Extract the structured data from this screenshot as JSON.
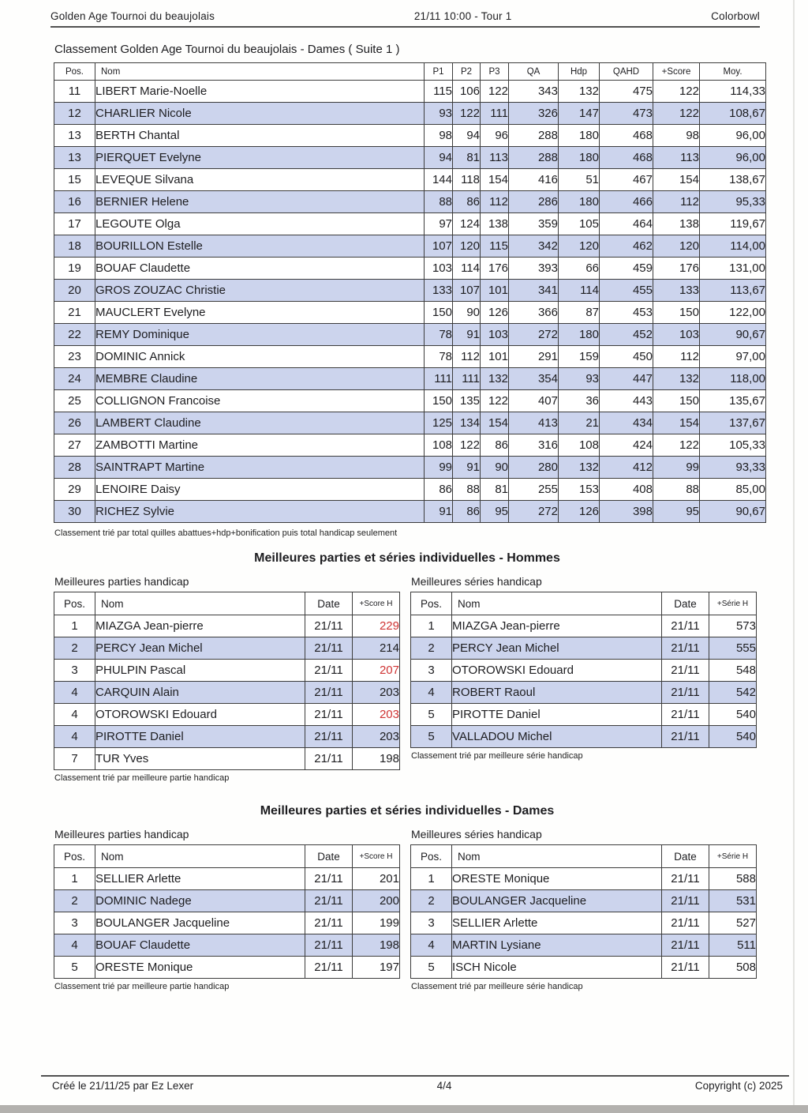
{
  "page_header": {
    "left": "Golden Age Tournoi du beaujolais",
    "center": "21/11 10:00 - Tour 1",
    "right": "Colorbowl"
  },
  "main_table": {
    "title": "Classement Golden Age Tournoi du beaujolais - Dames ( Suite 1 )",
    "columns": [
      "Pos.",
      "Nom",
      "P1",
      "P2",
      "P3",
      "QA",
      "Hdp",
      "QAHD",
      "+Score",
      "Moy."
    ],
    "rows": [
      [
        "11",
        "LIBERT Marie-Noelle",
        "115",
        "106",
        "122",
        "343",
        "132",
        "475",
        "122",
        "114,33"
      ],
      [
        "12",
        "CHARLIER Nicole",
        "93",
        "122",
        "111",
        "326",
        "147",
        "473",
        "122",
        "108,67"
      ],
      [
        "13",
        "BERTH Chantal",
        "98",
        "94",
        "96",
        "288",
        "180",
        "468",
        "98",
        "96,00"
      ],
      [
        "13",
        "PIERQUET Evelyne",
        "94",
        "81",
        "113",
        "288",
        "180",
        "468",
        "113",
        "96,00"
      ],
      [
        "15",
        "LEVEQUE Silvana",
        "144",
        "118",
        "154",
        "416",
        "51",
        "467",
        "154",
        "138,67"
      ],
      [
        "16",
        "BERNIER Helene",
        "88",
        "86",
        "112",
        "286",
        "180",
        "466",
        "112",
        "95,33"
      ],
      [
        "17",
        "LEGOUTE Olga",
        "97",
        "124",
        "138",
        "359",
        "105",
        "464",
        "138",
        "119,67"
      ],
      [
        "18",
        "BOURILLON Estelle",
        "107",
        "120",
        "115",
        "342",
        "120",
        "462",
        "120",
        "114,00"
      ],
      [
        "19",
        "BOUAF Claudette",
        "103",
        "114",
        "176",
        "393",
        "66",
        "459",
        "176",
        "131,00"
      ],
      [
        "20",
        "GROS ZOUZAC Christie",
        "133",
        "107",
        "101",
        "341",
        "114",
        "455",
        "133",
        "113,67"
      ],
      [
        "21",
        "MAUCLERT Evelyne",
        "150",
        "90",
        "126",
        "366",
        "87",
        "453",
        "150",
        "122,00"
      ],
      [
        "22",
        "REMY Dominique",
        "78",
        "91",
        "103",
        "272",
        "180",
        "452",
        "103",
        "90,67"
      ],
      [
        "23",
        "DOMINIC Annick",
        "78",
        "112",
        "101",
        "291",
        "159",
        "450",
        "112",
        "97,00"
      ],
      [
        "24",
        "MEMBRE Claudine",
        "111",
        "111",
        "132",
        "354",
        "93",
        "447",
        "132",
        "118,00"
      ],
      [
        "25",
        "COLLIGNON Francoise",
        "150",
        "135",
        "122",
        "407",
        "36",
        "443",
        "150",
        "135,67"
      ],
      [
        "26",
        "LAMBERT Claudine",
        "125",
        "134",
        "154",
        "413",
        "21",
        "434",
        "154",
        "137,67"
      ],
      [
        "27",
        "ZAMBOTTI Martine",
        "108",
        "122",
        "86",
        "316",
        "108",
        "424",
        "122",
        "105,33"
      ],
      [
        "28",
        "SAINTRAPT Martine",
        "99",
        "91",
        "90",
        "280",
        "132",
        "412",
        "99",
        "93,33"
      ],
      [
        "29",
        "LENOIRE Daisy",
        "86",
        "88",
        "81",
        "255",
        "153",
        "408",
        "88",
        "85,00"
      ],
      [
        "30",
        "RICHEZ Sylvie",
        "91",
        "86",
        "95",
        "272",
        "126",
        "398",
        "95",
        "90,67"
      ]
    ],
    "footnote": "Classement trié par total quilles abattues+hdp+bonification puis total handicap seulement"
  },
  "hommes": {
    "title": "Meilleures parties et séries individuelles - Hommes",
    "parties": {
      "subtitle": "Meilleures parties handicap",
      "columns": [
        "Pos.",
        "Nom",
        "Date",
        "+Score H"
      ],
      "rows": [
        {
          "cells": [
            "1",
            "MIAZGA Jean-pierre",
            "21/11",
            "229"
          ],
          "red": true
        },
        {
          "cells": [
            "2",
            "PERCY Jean Michel",
            "21/11",
            "214"
          ],
          "red": false
        },
        {
          "cells": [
            "3",
            "PHULPIN Pascal",
            "21/11",
            "207"
          ],
          "red": true
        },
        {
          "cells": [
            "4",
            "CARQUIN Alain",
            "21/11",
            "203"
          ],
          "red": false
        },
        {
          "cells": [
            "4",
            "OTOROWSKI Edouard",
            "21/11",
            "203"
          ],
          "red": true
        },
        {
          "cells": [
            "4",
            "PIROTTE Daniel",
            "21/11",
            "203"
          ],
          "red": false
        },
        {
          "cells": [
            "7",
            "TUR Yves",
            "21/11",
            "198"
          ],
          "red": false
        }
      ],
      "footnote": "Classement trié par meilleure partie handicap"
    },
    "series": {
      "subtitle": "Meilleures séries handicap",
      "columns": [
        "Pos.",
        "Nom",
        "Date",
        "+Série H"
      ],
      "rows": [
        [
          "1",
          "MIAZGA Jean-pierre",
          "21/11",
          "573"
        ],
        [
          "2",
          "PERCY Jean Michel",
          "21/11",
          "555"
        ],
        [
          "3",
          "OTOROWSKI Edouard",
          "21/11",
          "548"
        ],
        [
          "4",
          "ROBERT Raoul",
          "21/11",
          "542"
        ],
        [
          "5",
          "PIROTTE Daniel",
          "21/11",
          "540"
        ],
        [
          "5",
          "VALLADOU Michel",
          "21/11",
          "540"
        ]
      ],
      "footnote": "Classement trié par meilleure série handicap"
    }
  },
  "dames": {
    "title": "Meilleures parties et séries individuelles - Dames",
    "parties": {
      "subtitle": "Meilleures parties handicap",
      "columns": [
        "Pos.",
        "Nom",
        "Date",
        "+Score H"
      ],
      "rows": [
        [
          "1",
          "SELLIER Arlette",
          "21/11",
          "201"
        ],
        [
          "2",
          "DOMINIC Nadege",
          "21/11",
          "200"
        ],
        [
          "3",
          "BOULANGER Jacqueline",
          "21/11",
          "199"
        ],
        [
          "4",
          "BOUAF Claudette",
          "21/11",
          "198"
        ],
        [
          "5",
          "ORESTE Monique",
          "21/11",
          "197"
        ]
      ],
      "footnote": "Classement trié par meilleure partie handicap"
    },
    "series": {
      "subtitle": "Meilleures séries handicap",
      "columns": [
        "Pos.",
        "Nom",
        "Date",
        "+Série H"
      ],
      "rows": [
        [
          "1",
          "ORESTE Monique",
          "21/11",
          "588"
        ],
        [
          "2",
          "BOULANGER Jacqueline",
          "21/11",
          "531"
        ],
        [
          "3",
          "SELLIER Arlette",
          "21/11",
          "527"
        ],
        [
          "4",
          "MARTIN Lysiane",
          "21/11",
          "511"
        ],
        [
          "5",
          "ISCH Nicole",
          "21/11",
          "508"
        ]
      ],
      "footnote": "Classement trié par meilleure série handicap"
    }
  },
  "page_footer": {
    "left": "Créé le 21/11/25 par Ez Lexer",
    "center": "4/4",
    "right": "Copyright (c) 2025"
  },
  "colors": {
    "stripe": "#ccd4ed",
    "red": "#cf3434",
    "border": "#3c3c3c"
  }
}
